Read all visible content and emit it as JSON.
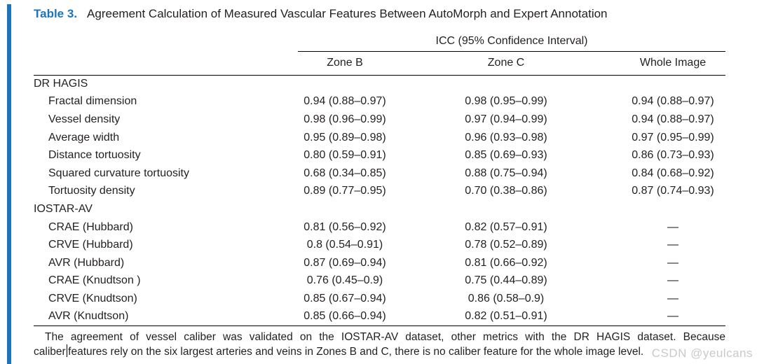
{
  "page": {
    "accent_color": "#1b75bc",
    "watermark_text": "CSDN @yeulcans"
  },
  "title": {
    "label": "Table 3.",
    "text": "Agreement Calculation of Measured Vascular Features Between AutoMorph and Expert Annotation"
  },
  "table": {
    "spanner_header": "ICC (95% Confidence Interval)",
    "columns": [
      "Zone B",
      "Zone C",
      "Whole Image"
    ],
    "sections": [
      {
        "header": "DR HAGIS",
        "rows": [
          {
            "label": "Fractal dimension",
            "zone_b": "0.94 (0.88–0.97)",
            "zone_c": "0.98 (0.95–0.99)",
            "whole_image": "0.94 (0.88–0.97)"
          },
          {
            "label": "Vessel density",
            "zone_b": "0.98 (0.96–0.99)",
            "zone_c": "0.97 (0.94–0.99)",
            "whole_image": "0.94 (0.88–0.97)"
          },
          {
            "label": "Average width",
            "zone_b": "0.95 (0.89–0.98)",
            "zone_c": "0.96 (0.93–0.98)",
            "whole_image": "0.97 (0.95–0.99)"
          },
          {
            "label": "Distance tortuosity",
            "zone_b": "0.80 (0.59–0.91)",
            "zone_c": "0.85 (0.69–0.93)",
            "whole_image": "0.86 (0.73–0.93)"
          },
          {
            "label": "Squared curvature tortuosity",
            "zone_b": "0.68 (0.34–0.85)",
            "zone_c": "0.88 (0.75–0.94)",
            "whole_image": "0.84 (0.68–0.92)"
          },
          {
            "label": "Tortuosity density",
            "zone_b": "0.89 (0.77–0.95)",
            "zone_c": "0.70 (0.38–0.86)",
            "whole_image": "0.87 (0.74–0.93)"
          }
        ]
      },
      {
        "header": "IOSTAR-AV",
        "rows": [
          {
            "label": "CRAE (Hubbard)",
            "zone_b": "0.81 (0.56–0.92)",
            "zone_c": "0.82 (0.57–0.91)",
            "whole_image": "—"
          },
          {
            "label": "CRVE (Hubbard)",
            "zone_b": "0.8 (0.54–0.91)",
            "zone_c": "0.78 (0.52–0.89)",
            "whole_image": "—"
          },
          {
            "label": "AVR (Hubbard)",
            "zone_b": "0.87 (0.69–0.94)",
            "zone_c": "0.81 (0.66–0.92)",
            "whole_image": "—"
          },
          {
            "label": "CRAE (Knudtson )",
            "zone_b": "0.76 (0.45–0.9)",
            "zone_c": "0.75 (0.44–0.89)",
            "whole_image": "—"
          },
          {
            "label": "CRVE (Knudtson)",
            "zone_b": "0.85 (0.67–0.94)",
            "zone_c": "0.86 (0.58–0.9)",
            "whole_image": "—"
          },
          {
            "label": "AVR (Knudtson)",
            "zone_b": "0.85 (0.66–0.94)",
            "zone_c": "0.82 (0.51–0.91)",
            "whole_image": "—"
          }
        ]
      }
    ]
  },
  "footnote": {
    "line1": "The agreement of vessel caliber was validated on the IOSTAR-AV dataset, other metrics with the DR HAGIS dataset. Because",
    "line2_before_cursor": "caliber",
    "line2_after_cursor": "features rely on the six largest arteries and veins in Zones B and C, there is no caliber feature for the whole image level."
  }
}
